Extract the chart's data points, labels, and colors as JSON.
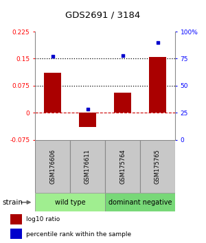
{
  "title": "GDS2691 / 3184",
  "samples": [
    "GSM176606",
    "GSM176611",
    "GSM175764",
    "GSM175765"
  ],
  "log10_ratio": [
    0.11,
    -0.04,
    0.055,
    0.155
  ],
  "percentile": [
    77,
    28,
    78,
    90
  ],
  "groups": [
    {
      "label": "wild type",
      "samples": [
        0,
        1
      ],
      "color": "#a0ee90"
    },
    {
      "label": "dominant negative",
      "samples": [
        2,
        3
      ],
      "color": "#78d878"
    }
  ],
  "ylim_left": [
    -0.075,
    0.225
  ],
  "ylim_right": [
    0,
    100
  ],
  "yticks_left": [
    -0.075,
    0,
    0.075,
    0.15,
    0.225
  ],
  "yticks_right": [
    0,
    25,
    50,
    75,
    100
  ],
  "ytick_labels_left": [
    "-0.075",
    "0",
    "0.075",
    "0.15",
    "0.225"
  ],
  "ytick_labels_right": [
    "0",
    "25",
    "50",
    "75",
    "100%"
  ],
  "hlines_dotted": [
    0.075,
    0.15
  ],
  "hline_dashed_color": "#cc0000",
  "bar_color": "#aa0000",
  "dot_color": "#0000cc",
  "bar_width": 0.5,
  "strain_label": "strain",
  "legend_bar_label": "log10 ratio",
  "legend_dot_label": "percentile rank within the sample",
  "sample_box_color": "#c8c8c8",
  "sample_box_border": "#888888"
}
